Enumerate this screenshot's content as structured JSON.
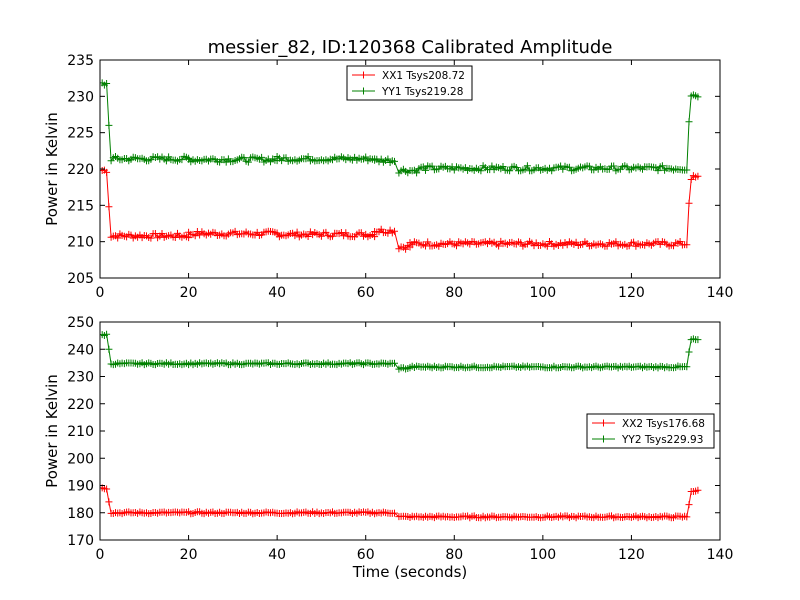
{
  "figure_title": "messier_82, ID:120368 Calibrated Amplitude",
  "chart_data": [
    {
      "type": "line",
      "xlabel": "",
      "ylabel": "Power in Kelvin",
      "xlim": [
        0,
        140
      ],
      "ylim": [
        205,
        235
      ],
      "xticks": [
        "0",
        "20",
        "40",
        "60",
        "80",
        "100",
        "120",
        "140"
      ],
      "yticks": [
        "205",
        "210",
        "215",
        "220",
        "225",
        "230",
        "235"
      ],
      "grid": false,
      "legend_placement": "top-center",
      "series": [
        {
          "name": "XX1 Tsys208.72",
          "color": "#ff0000",
          "x_range": [
            0.5,
            135
          ],
          "segments": [
            {
              "from": 0.5,
              "to": 1.8,
              "level": 219.8
            },
            {
              "from": 2.0,
              "to": 2.0,
              "level": 214.8
            },
            {
              "from": 2.5,
              "to": 20,
              "level": 210.8
            },
            {
              "from": 20,
              "to": 40,
              "level": 211.1
            },
            {
              "from": 40,
              "to": 62,
              "level": 211.0
            },
            {
              "from": 62,
              "to": 66.5,
              "level": 211.5
            },
            {
              "from": 67.5,
              "to": 70,
              "level": 209.3
            },
            {
              "from": 70,
              "to": 132.5,
              "level": 209.7
            },
            {
              "from": 133,
              "to": 133,
              "level": 215.3
            },
            {
              "from": 133.5,
              "to": 135,
              "level": 218.8
            }
          ]
        },
        {
          "name": "YY1 Tsys219.28",
          "color": "#008000",
          "x_range": [
            0.5,
            135
          ],
          "segments": [
            {
              "from": 0.5,
              "to": 1.8,
              "level": 231.7
            },
            {
              "from": 2.0,
              "to": 2.0,
              "level": 226.0
            },
            {
              "from": 2.5,
              "to": 20,
              "level": 221.4
            },
            {
              "from": 20,
              "to": 40,
              "level": 221.3
            },
            {
              "from": 40,
              "to": 62,
              "level": 221.4
            },
            {
              "from": 62,
              "to": 66.5,
              "level": 221.2
            },
            {
              "from": 67.5,
              "to": 72,
              "level": 219.8
            },
            {
              "from": 72,
              "to": 132.5,
              "level": 220.1
            },
            {
              "from": 133,
              "to": 133,
              "level": 226.5
            },
            {
              "from": 133.5,
              "to": 135,
              "level": 230.2
            }
          ]
        }
      ]
    },
    {
      "type": "line",
      "xlabel": "Time (seconds)",
      "ylabel": "Power in Kelvin",
      "xlim": [
        0,
        140
      ],
      "ylim": [
        170,
        250
      ],
      "xticks": [
        "0",
        "20",
        "40",
        "60",
        "80",
        "100",
        "120",
        "140"
      ],
      "yticks": [
        "170",
        "180",
        "190",
        "200",
        "210",
        "220",
        "230",
        "240",
        "250"
      ],
      "grid": false,
      "legend_placement": "center-right",
      "series": [
        {
          "name": "XX2 Tsys176.68",
          "color": "#ff0000",
          "x_range": [
            0.5,
            135
          ],
          "segments": [
            {
              "from": 0.5,
              "to": 1.8,
              "level": 189.0
            },
            {
              "from": 2.0,
              "to": 2.0,
              "level": 184.0
            },
            {
              "from": 2.5,
              "to": 66.5,
              "level": 180.0
            },
            {
              "from": 67.5,
              "to": 132.5,
              "level": 178.5
            },
            {
              "from": 133,
              "to": 133,
              "level": 183.0
            },
            {
              "from": 133.5,
              "to": 135,
              "level": 188.0
            }
          ]
        },
        {
          "name": "YY2 Tsys229.93",
          "color": "#008000",
          "x_range": [
            0.5,
            135
          ],
          "segments": [
            {
              "from": 0.5,
              "to": 1.8,
              "level": 245.3
            },
            {
              "from": 2.0,
              "to": 2.0,
              "level": 240.0
            },
            {
              "from": 2.5,
              "to": 66.5,
              "level": 234.7
            },
            {
              "from": 67.5,
              "to": 70,
              "level": 233.0
            },
            {
              "from": 70,
              "to": 132.5,
              "level": 233.5
            },
            {
              "from": 133,
              "to": 133,
              "level": 239.0
            },
            {
              "from": 133.5,
              "to": 135,
              "level": 243.5
            }
          ]
        }
      ]
    }
  ]
}
